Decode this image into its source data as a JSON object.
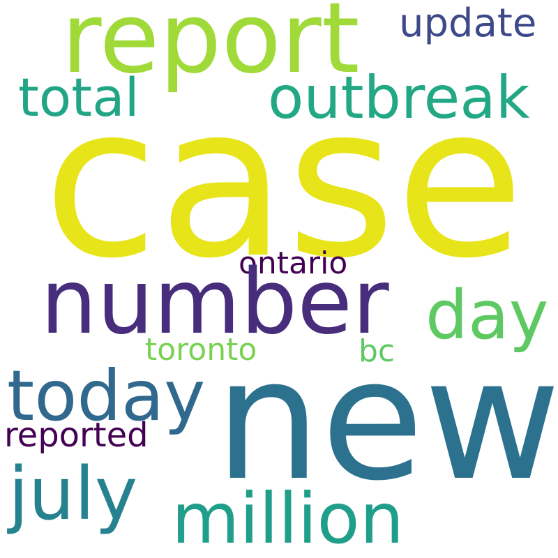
{
  "words": {
    "case": {
      "text": "case",
      "color": "#e7e419"
    },
    "new": {
      "text": "new",
      "color": "#2c728e"
    },
    "report": {
      "text": "report",
      "color": "#a0da39"
    },
    "number": {
      "text": "number",
      "color": "#472d7b"
    },
    "outbreak": {
      "text": "outbreak",
      "color": "#22a884"
    },
    "total": {
      "text": "total",
      "color": "#21a585"
    },
    "update": {
      "text": "update",
      "color": "#3e4989"
    },
    "day": {
      "text": "day",
      "color": "#5ec962"
    },
    "today": {
      "text": "today",
      "color": "#31688e"
    },
    "ontario": {
      "text": "ontario",
      "color": "#440154"
    },
    "toronto": {
      "text": "toronto",
      "color": "#7ad151"
    },
    "bc": {
      "text": "bc",
      "color": "#5ec962"
    },
    "reported": {
      "text": "reported",
      "color": "#440154"
    },
    "july": {
      "text": "july",
      "color": "#26828e"
    },
    "million": {
      "text": "million",
      "color": "#1f9e89"
    }
  }
}
